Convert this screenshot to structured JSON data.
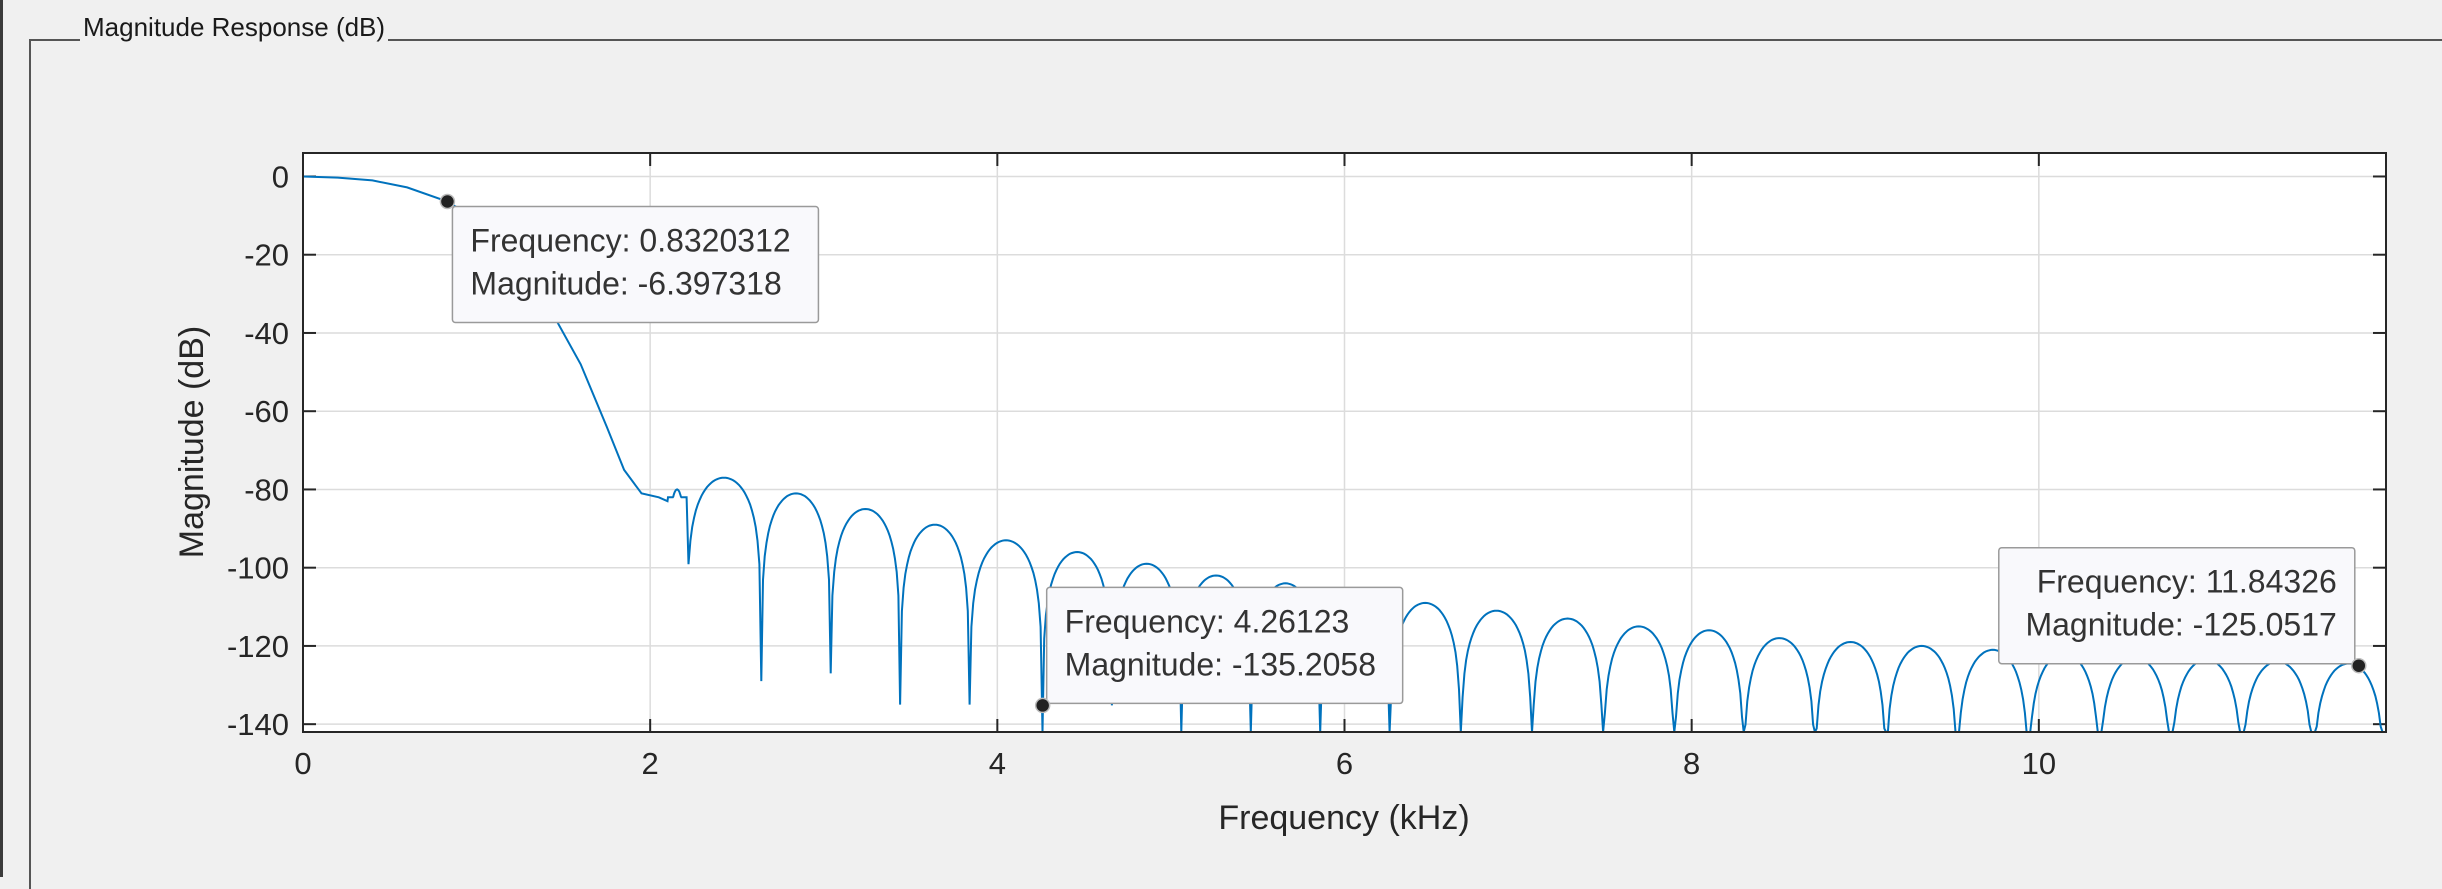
{
  "panel": {
    "title": "Magnitude Response (dB)"
  },
  "chart_data": {
    "type": "line",
    "xlabel": "Frequency (kHz)",
    "ylabel": "Magnitude (dB)",
    "xlim": [
      0,
      12
    ],
    "ylim": [
      -142,
      6
    ],
    "x_ticks": [
      0,
      2,
      4,
      6,
      8,
      10
    ],
    "y_ticks": [
      0,
      -20,
      -40,
      -60,
      -80,
      -100,
      -120,
      -140
    ],
    "x_tick_labels": [
      "0",
      "2",
      "4",
      "6",
      "8",
      "10"
    ],
    "y_tick_labels": [
      "0",
      "-20",
      "-40",
      "-60",
      "-80",
      "-100",
      "-120",
      "-140"
    ],
    "grid": true,
    "line_color": "#0072bd",
    "series": [
      {
        "points": [
          [
            0,
            0
          ],
          [
            0.2,
            -0.3
          ],
          [
            0.4,
            -1.0
          ],
          [
            0.6,
            -2.8
          ],
          [
            0.832,
            -6.4
          ],
          [
            1.0,
            -11
          ],
          [
            1.2,
            -20
          ],
          [
            1.4,
            -32
          ],
          [
            1.6,
            -48
          ],
          [
            1.75,
            -64
          ],
          [
            1.85,
            -75
          ],
          [
            1.95,
            -81
          ],
          [
            2.05,
            -82
          ],
          [
            2.1,
            -83
          ]
        ],
        "lobes": [
          {
            "start": 2.1,
            "end": 2.21,
            "peak": -80,
            "null": -82
          },
          {
            "start": 2.21,
            "end": 2.64,
            "peak": -77,
            "null": -129
          },
          {
            "start": 2.64,
            "end": 3.04,
            "peak": -81,
            "null": -127
          },
          {
            "start": 3.04,
            "end": 3.44,
            "peak": -85,
            "null": -135
          },
          {
            "start": 3.44,
            "end": 3.84,
            "peak": -89,
            "null": -135
          },
          {
            "start": 3.84,
            "end": 4.26,
            "peak": -93,
            "null": -142
          },
          {
            "start": 4.26,
            "end": 4.66,
            "peak": -96,
            "null": -135.2
          },
          {
            "start": 4.66,
            "end": 5.06,
            "peak": -99,
            "null": -142
          },
          {
            "start": 5.06,
            "end": 5.46,
            "peak": -102,
            "null": -142
          },
          {
            "start": 5.46,
            "end": 5.86,
            "peak": -104,
            "null": -142
          },
          {
            "start": 5.86,
            "end": 6.26,
            "peak": -106,
            "null": -142
          },
          {
            "start": 6.26,
            "end": 6.67,
            "peak": -109,
            "null": -142
          },
          {
            "start": 6.67,
            "end": 7.08,
            "peak": -111,
            "null": -142
          },
          {
            "start": 7.08,
            "end": 7.49,
            "peak": -113,
            "null": -142
          },
          {
            "start": 7.49,
            "end": 7.9,
            "peak": -115,
            "null": -142
          },
          {
            "start": 7.9,
            "end": 8.3,
            "peak": -116,
            "null": -142
          },
          {
            "start": 8.3,
            "end": 8.71,
            "peak": -118,
            "null": -142
          },
          {
            "start": 8.71,
            "end": 9.12,
            "peak": -119,
            "null": -142
          },
          {
            "start": 9.12,
            "end": 9.53,
            "peak": -120,
            "null": -142
          },
          {
            "start": 9.53,
            "end": 9.94,
            "peak": -121,
            "null": -142
          },
          {
            "start": 9.94,
            "end": 10.35,
            "peak": -122,
            "null": -142
          },
          {
            "start": 10.35,
            "end": 10.76,
            "peak": -123,
            "null": -142
          },
          {
            "start": 10.76,
            "end": 11.17,
            "peak": -123.5,
            "null": -142
          },
          {
            "start": 11.17,
            "end": 11.58,
            "peak": -124,
            "null": -142
          },
          {
            "start": 11.58,
            "end": 11.99,
            "peak": -124.5,
            "null": -142
          }
        ]
      }
    ],
    "datatips": [
      {
        "x": 0.8320312,
        "y": -6.397318,
        "line1": "Frequency: 0.8320312",
        "line2": "Magnitude: -6.397318",
        "box_side": "below-right"
      },
      {
        "x": 4.26123,
        "y": -135.2058,
        "line1": "Frequency: 4.26123",
        "line2": "Magnitude: -135.2058",
        "box_side": "above-right"
      },
      {
        "x": 11.84326,
        "y": -125.0517,
        "line1": "Frequency: 11.84326",
        "line2": "Magnitude: -125.0517",
        "box_side": "above-left"
      }
    ]
  }
}
